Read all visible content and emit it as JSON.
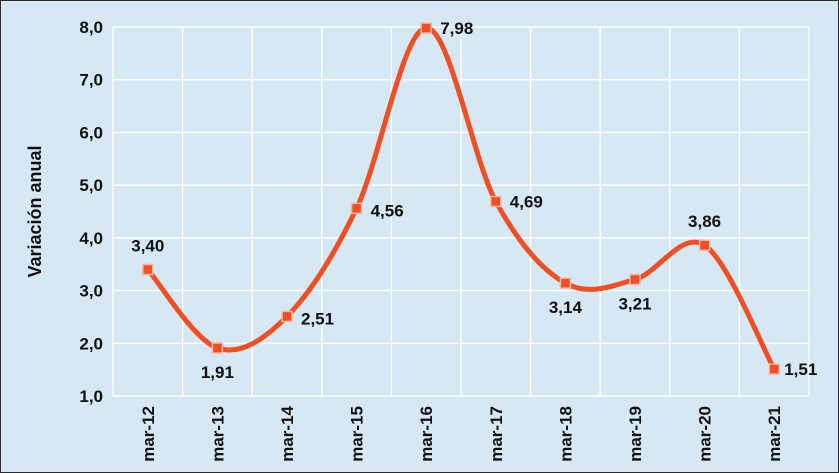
{
  "chart_data": {
    "type": "line",
    "smooth": true,
    "title": "",
    "xlabel": "",
    "ylabel": "Variación anual",
    "categories": [
      "mar-12",
      "mar-13",
      "mar-14",
      "mar-15",
      "mar-16",
      "mar-17",
      "mar-18",
      "mar-19",
      "mar-20",
      "mar-21"
    ],
    "series": [
      {
        "values": [
          3.4,
          1.91,
          2.51,
          4.56,
          7.98,
          4.69,
          3.14,
          3.21,
          3.86,
          1.51
        ],
        "data_labels": [
          "3,40",
          "1,91",
          "2,51",
          "4,56",
          "7,98",
          "4,69",
          "3,14",
          "3,21",
          "3,86",
          "1,51"
        ],
        "color": "#f04e23",
        "marker_color": "#f04e23",
        "marker_border": "#f5b9a8"
      }
    ],
    "yticks": [
      "1,0",
      "2,0",
      "3,0",
      "4,0",
      "5,0",
      "6,0",
      "7,0",
      "8,0"
    ],
    "ylim": [
      1.0,
      8.0
    ],
    "grid": true,
    "legend": "none",
    "background_color": "#d5e8f3",
    "grid_color": "#ffffff"
  }
}
